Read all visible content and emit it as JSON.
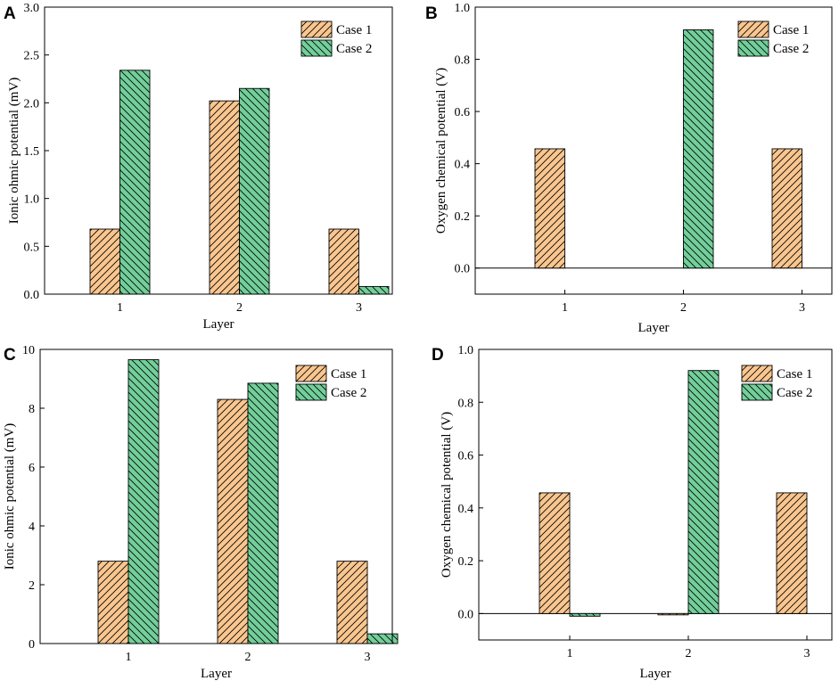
{
  "colors": {
    "case1_fill": "#f9c68f",
    "case2_fill": "#72cf9a",
    "stroke": "#000000"
  },
  "chart_data": [
    {
      "panel": "A",
      "type": "bar",
      "categories": [
        "1",
        "2",
        "3"
      ],
      "xlabel": "Layer",
      "ylabel": "Ionic ohmic potential (mV)",
      "ylim": [
        0,
        3.0
      ],
      "yticks": [
        0,
        0.5,
        1.0,
        1.5,
        2.0,
        2.5,
        3.0
      ],
      "yticklabels": [
        "0.0",
        "0.5",
        "1.0",
        "1.5",
        "2.0",
        "2.5",
        "3.0"
      ],
      "zero_line": false,
      "legend": "top-right",
      "series": [
        {
          "name": "Case 1",
          "values": [
            0.68,
            2.02,
            0.68
          ]
        },
        {
          "name": "Case 2",
          "values": [
            2.34,
            2.15,
            0.08
          ]
        }
      ]
    },
    {
      "panel": "B",
      "type": "bar",
      "categories": [
        "1",
        "2",
        "3"
      ],
      "xlabel": "Layer",
      "ylabel": "Oxygen chemical potential (V)",
      "ylim": [
        -0.1,
        1.0
      ],
      "yticks": [
        0,
        0.2,
        0.4,
        0.6,
        0.8,
        1.0
      ],
      "yticklabels": [
        "0.0",
        "0.2",
        "0.4",
        "0.6",
        "0.8",
        "1.0"
      ],
      "zero_line": true,
      "legend": "top-right",
      "series": [
        {
          "name": "Case 1",
          "values": [
            0.457,
            0,
            0.457
          ]
        },
        {
          "name": "Case 2",
          "values": [
            0,
            0.913,
            0
          ]
        }
      ]
    },
    {
      "panel": "C",
      "type": "bar",
      "categories": [
        "1",
        "2",
        "3"
      ],
      "xlabel": "Layer",
      "ylabel": "Ionic ohmic potential (mV)",
      "ylim": [
        0,
        10
      ],
      "yticks": [
        0,
        2,
        4,
        6,
        8,
        10
      ],
      "yticklabels": [
        "0",
        "2",
        "4",
        "6",
        "8",
        "10"
      ],
      "zero_line": false,
      "legend": "top-right",
      "series": [
        {
          "name": "Case 1",
          "values": [
            2.8,
            8.3,
            2.8
          ]
        },
        {
          "name": "Case 2",
          "values": [
            9.65,
            8.85,
            0.33
          ]
        }
      ]
    },
    {
      "panel": "D",
      "type": "bar",
      "categories": [
        "1",
        "2",
        "3"
      ],
      "xlabel": "Layer",
      "ylabel": "Oxygen chemical potential (V)",
      "ylim": [
        -0.1,
        1.0
      ],
      "yticks": [
        0,
        0.2,
        0.4,
        0.6,
        0.8,
        1.0
      ],
      "yticklabels": [
        "0.0",
        "0.2",
        "0.4",
        "0.6",
        "0.8",
        "1.0"
      ],
      "zero_line": true,
      "legend": "top-right",
      "series": [
        {
          "name": "Case 1",
          "values": [
            0.457,
            -0.005,
            0.457
          ]
        },
        {
          "name": "Case 2",
          "values": [
            -0.01,
            0.92,
            0
          ]
        }
      ]
    }
  ]
}
